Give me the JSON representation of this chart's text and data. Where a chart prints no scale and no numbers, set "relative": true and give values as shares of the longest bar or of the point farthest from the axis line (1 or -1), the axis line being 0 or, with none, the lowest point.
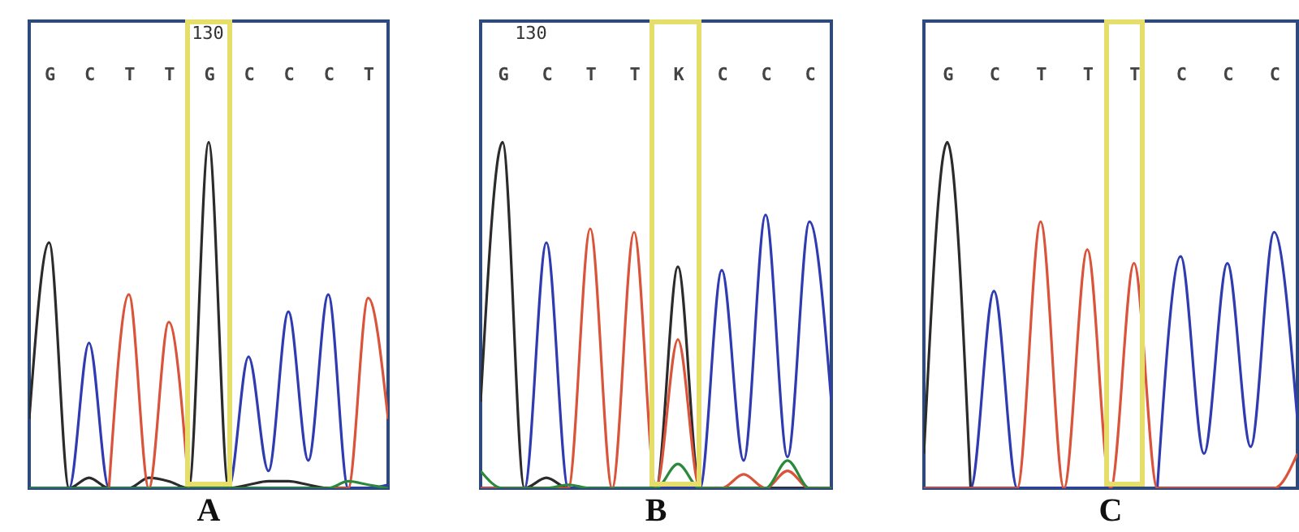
{
  "chart_data": [
    {
      "type": "line",
      "relative": true,
      "xlabel": "A",
      "categories": [
        null,
        "G",
        null,
        "C",
        null,
        "T",
        null,
        "T",
        null,
        "G",
        null,
        "C",
        null,
        "C",
        null,
        "C",
        null,
        "T",
        null
      ],
      "annotations": [
        "130"
      ],
      "series": [
        {
          "color": "#2b2b2b",
          "values": [
            0.2,
            0.71,
            0,
            0.03,
            0,
            0,
            0.03,
            0.02,
            0,
            1,
            0,
            0.01,
            0.02,
            0.02,
            0.01,
            0,
            0,
            null,
            null
          ]
        },
        {
          "color": "#2f3bb0",
          "values": [
            0,
            0,
            0,
            0.42,
            0,
            0,
            0,
            0,
            0,
            0,
            0,
            0.38,
            0.05,
            0.51,
            0.08,
            0.56,
            0,
            0,
            0.01
          ]
        },
        {
          "color": "#d9543a",
          "values": [
            null,
            null,
            null,
            null,
            0,
            0.56,
            0,
            0.48,
            0,
            null,
            null,
            null,
            null,
            null,
            null,
            0,
            0,
            0.55,
            0.2
          ]
        },
        {
          "color": "#2a8a3a",
          "values": [
            0,
            0,
            0,
            0,
            0,
            0,
            0,
            0,
            0,
            0,
            0,
            0,
            0,
            0,
            0,
            0,
            0.02,
            0.01,
            0
          ]
        }
      ]
    },
    {
      "type": "line",
      "relative": true,
      "xlabel": "B",
      "categories": [
        null,
        "G",
        null,
        "C",
        null,
        "T",
        null,
        "T",
        null,
        "K",
        null,
        "C",
        null,
        "C",
        null,
        "C",
        null
      ],
      "annotations": [
        "130"
      ],
      "series": [
        {
          "color": "#2b2b2b",
          "values": [
            0.25,
            1,
            0,
            0.03,
            0,
            0,
            0,
            0,
            0,
            0.64,
            0,
            0,
            0,
            0,
            0,
            0,
            0
          ]
        },
        {
          "color": "#2f3bb0",
          "values": [
            0,
            0,
            0,
            0.71,
            0,
            0,
            0,
            0,
            0,
            0,
            0,
            0.63,
            0.08,
            0.79,
            0.09,
            0.77,
            0.25
          ]
        },
        {
          "color": "#d9543a",
          "values": [
            0,
            0,
            0,
            0,
            0,
            0.75,
            0,
            0.74,
            0,
            0.43,
            0,
            0,
            0.04,
            0,
            0.05,
            0,
            0
          ]
        },
        {
          "color": "#2a8a3a",
          "values": [
            0.05,
            0,
            0,
            0,
            0.01,
            0,
            0,
            0,
            0,
            0.07,
            0,
            0,
            0,
            0,
            0.08,
            0,
            0
          ]
        }
      ]
    },
    {
      "type": "line",
      "relative": true,
      "xlabel": "C",
      "categories": [
        null,
        "G",
        null,
        "C",
        null,
        "T",
        null,
        "T",
        null,
        "T",
        null,
        "C",
        null,
        "C",
        null,
        "C",
        null
      ],
      "series": [
        {
          "color": "#2b2b2b",
          "values": [
            0.1,
            1,
            0,
            null,
            null,
            null,
            null,
            null,
            null,
            null,
            null,
            null,
            null,
            null,
            null,
            null,
            null
          ]
        },
        {
          "color": "#2f3bb0",
          "values": [
            0,
            0,
            0,
            0.57,
            0,
            0,
            0,
            0,
            0,
            null,
            0,
            0.67,
            0.1,
            0.65,
            0.12,
            0.74,
            0.2
          ]
        },
        {
          "color": "#d9543a",
          "values": [
            0,
            0,
            0,
            0,
            0,
            0.77,
            0,
            0.69,
            0,
            0.65,
            0,
            0,
            0,
            0,
            0,
            0,
            0.1
          ]
        }
      ]
    }
  ]
}
